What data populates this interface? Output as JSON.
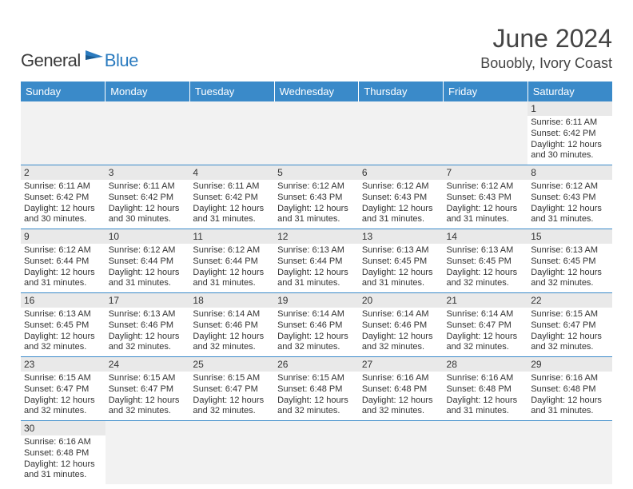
{
  "logo": {
    "text1": "General",
    "text2": "Blue"
  },
  "title": "June 2024",
  "location": "Bouobly, Ivory Coast",
  "colors": {
    "header_bg": "#3a8ac9",
    "header_text": "#ffffff",
    "daynum_bg": "#e9e9e9",
    "border": "#3a8ac9",
    "pad_bg": "#f2f2f2",
    "logo_blue": "#2b7bbf",
    "text": "#333333"
  },
  "dayNames": [
    "Sunday",
    "Monday",
    "Tuesday",
    "Wednesday",
    "Thursday",
    "Friday",
    "Saturday"
  ],
  "startPad": 6,
  "days": [
    {
      "n": 1,
      "sr": "6:11 AM",
      "ss": "6:42 PM",
      "dl": "12 hours and 30 minutes."
    },
    {
      "n": 2,
      "sr": "6:11 AM",
      "ss": "6:42 PM",
      "dl": "12 hours and 30 minutes."
    },
    {
      "n": 3,
      "sr": "6:11 AM",
      "ss": "6:42 PM",
      "dl": "12 hours and 30 minutes."
    },
    {
      "n": 4,
      "sr": "6:11 AM",
      "ss": "6:42 PM",
      "dl": "12 hours and 31 minutes."
    },
    {
      "n": 5,
      "sr": "6:12 AM",
      "ss": "6:43 PM",
      "dl": "12 hours and 31 minutes."
    },
    {
      "n": 6,
      "sr": "6:12 AM",
      "ss": "6:43 PM",
      "dl": "12 hours and 31 minutes."
    },
    {
      "n": 7,
      "sr": "6:12 AM",
      "ss": "6:43 PM",
      "dl": "12 hours and 31 minutes."
    },
    {
      "n": 8,
      "sr": "6:12 AM",
      "ss": "6:43 PM",
      "dl": "12 hours and 31 minutes."
    },
    {
      "n": 9,
      "sr": "6:12 AM",
      "ss": "6:44 PM",
      "dl": "12 hours and 31 minutes."
    },
    {
      "n": 10,
      "sr": "6:12 AM",
      "ss": "6:44 PM",
      "dl": "12 hours and 31 minutes."
    },
    {
      "n": 11,
      "sr": "6:12 AM",
      "ss": "6:44 PM",
      "dl": "12 hours and 31 minutes."
    },
    {
      "n": 12,
      "sr": "6:13 AM",
      "ss": "6:44 PM",
      "dl": "12 hours and 31 minutes."
    },
    {
      "n": 13,
      "sr": "6:13 AM",
      "ss": "6:45 PM",
      "dl": "12 hours and 31 minutes."
    },
    {
      "n": 14,
      "sr": "6:13 AM",
      "ss": "6:45 PM",
      "dl": "12 hours and 32 minutes."
    },
    {
      "n": 15,
      "sr": "6:13 AM",
      "ss": "6:45 PM",
      "dl": "12 hours and 32 minutes."
    },
    {
      "n": 16,
      "sr": "6:13 AM",
      "ss": "6:45 PM",
      "dl": "12 hours and 32 minutes."
    },
    {
      "n": 17,
      "sr": "6:13 AM",
      "ss": "6:46 PM",
      "dl": "12 hours and 32 minutes."
    },
    {
      "n": 18,
      "sr": "6:14 AM",
      "ss": "6:46 PM",
      "dl": "12 hours and 32 minutes."
    },
    {
      "n": 19,
      "sr": "6:14 AM",
      "ss": "6:46 PM",
      "dl": "12 hours and 32 minutes."
    },
    {
      "n": 20,
      "sr": "6:14 AM",
      "ss": "6:46 PM",
      "dl": "12 hours and 32 minutes."
    },
    {
      "n": 21,
      "sr": "6:14 AM",
      "ss": "6:47 PM",
      "dl": "12 hours and 32 minutes."
    },
    {
      "n": 22,
      "sr": "6:15 AM",
      "ss": "6:47 PM",
      "dl": "12 hours and 32 minutes."
    },
    {
      "n": 23,
      "sr": "6:15 AM",
      "ss": "6:47 PM",
      "dl": "12 hours and 32 minutes."
    },
    {
      "n": 24,
      "sr": "6:15 AM",
      "ss": "6:47 PM",
      "dl": "12 hours and 32 minutes."
    },
    {
      "n": 25,
      "sr": "6:15 AM",
      "ss": "6:47 PM",
      "dl": "12 hours and 32 minutes."
    },
    {
      "n": 26,
      "sr": "6:15 AM",
      "ss": "6:48 PM",
      "dl": "12 hours and 32 minutes."
    },
    {
      "n": 27,
      "sr": "6:16 AM",
      "ss": "6:48 PM",
      "dl": "12 hours and 32 minutes."
    },
    {
      "n": 28,
      "sr": "6:16 AM",
      "ss": "6:48 PM",
      "dl": "12 hours and 31 minutes."
    },
    {
      "n": 29,
      "sr": "6:16 AM",
      "ss": "6:48 PM",
      "dl": "12 hours and 31 minutes."
    },
    {
      "n": 30,
      "sr": "6:16 AM",
      "ss": "6:48 PM",
      "dl": "12 hours and 31 minutes."
    }
  ],
  "labels": {
    "sunrise": "Sunrise: ",
    "sunset": "Sunset: ",
    "daylight": "Daylight: "
  }
}
